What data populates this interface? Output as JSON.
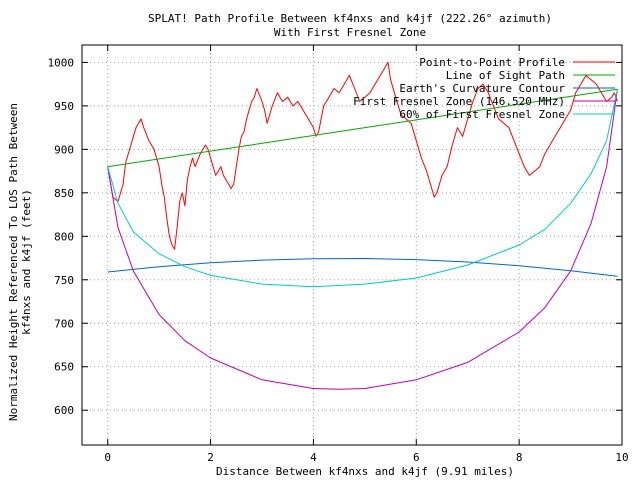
{
  "chart_data": {
    "type": "line",
    "title": "SPLAT! Path Profile Between kf4nxs and k4jf (222.26° azimuth)",
    "subtitle": "With First Fresnel Zone",
    "xlabel": "Distance Between kf4nxs and k4jf (9.91 miles)",
    "ylabel_line1": "Normalized Height Referenced To LOS Path Between",
    "ylabel_line2": "kf4nxs and k4jf (feet)",
    "xlim": [
      -0.5,
      10
    ],
    "ylim": [
      560,
      1020
    ],
    "xticks": [
      0,
      2,
      4,
      6,
      8,
      10
    ],
    "yticks": [
      600,
      650,
      700,
      750,
      800,
      850,
      900,
      950,
      1000
    ],
    "grid": true,
    "legend_position": "top-right",
    "series": [
      {
        "name": "Point-to-Point Profile",
        "color": "#ff0000",
        "x": [
          0,
          0.1,
          0.2,
          0.3,
          0.35,
          0.45,
          0.5,
          0.55,
          0.65,
          0.7,
          0.8,
          0.9,
          1.0,
          1.05,
          1.1,
          1.15,
          1.2,
          1.25,
          1.3,
          1.35,
          1.4,
          1.45,
          1.5,
          1.55,
          1.6,
          1.65,
          1.7,
          1.8,
          1.9,
          1.95,
          2.0,
          2.05,
          2.1,
          2.15,
          2.2,
          2.25,
          2.3,
          2.4,
          2.45,
          2.5,
          2.55,
          2.6,
          2.65,
          2.7,
          2.75,
          2.8,
          2.85,
          2.9,
          3.0,
          3.05,
          3.1,
          3.15,
          3.2,
          3.3,
          3.4,
          3.5,
          3.6,
          3.7,
          3.8,
          3.9,
          4.0,
          4.05,
          4.1,
          4.15,
          4.2,
          4.3,
          4.4,
          4.5,
          4.6,
          4.7,
          4.8,
          4.9,
          5.0,
          5.1,
          5.2,
          5.3,
          5.35,
          5.4,
          5.45,
          5.5,
          5.6,
          5.7,
          5.8,
          5.9,
          6.0,
          6.1,
          6.2,
          6.3,
          6.35,
          6.4,
          6.5,
          6.6,
          6.7,
          6.8,
          6.9,
          7.0,
          7.1,
          7.2,
          7.3,
          7.4,
          7.5,
          7.6,
          7.7,
          7.8,
          7.9,
          8.0,
          8.1,
          8.2,
          8.3,
          8.4,
          8.5,
          8.6,
          8.7,
          8.8,
          8.9,
          9.0,
          9.1,
          9.2,
          9.3,
          9.4,
          9.5,
          9.6,
          9.7,
          9.8,
          9.85,
          9.91
        ],
        "y": [
          880,
          845,
          840,
          860,
          885,
          905,
          915,
          925,
          935,
          925,
          910,
          900,
          880,
          860,
          845,
          820,
          800,
          790,
          785,
          810,
          840,
          850,
          835,
          865,
          880,
          890,
          880,
          895,
          905,
          900,
          890,
          880,
          870,
          875,
          880,
          870,
          865,
          855,
          860,
          880,
          900,
          915,
          920,
          935,
          945,
          955,
          960,
          970,
          955,
          945,
          930,
          940,
          950,
          965,
          955,
          960,
          950,
          955,
          945,
          935,
          925,
          915,
          920,
          935,
          950,
          960,
          970,
          965,
          975,
          985,
          970,
          955,
          960,
          965,
          975,
          985,
          990,
          995,
          1000,
          980,
          960,
          940,
          935,
          930,
          910,
          890,
          875,
          855,
          845,
          850,
          870,
          880,
          905,
          925,
          915,
          935,
          955,
          970,
          975,
          965,
          950,
          935,
          930,
          925,
          910,
          895,
          880,
          870,
          875,
          880,
          895,
          905,
          915,
          925,
          935,
          945,
          965,
          975,
          985,
          980,
          975,
          965,
          955,
          960,
          965,
          955
        ]
      },
      {
        "name": "Line of Sight Path",
        "color": "#00aa00",
        "x": [
          0,
          9.91
        ],
        "y": [
          880,
          969
        ]
      },
      {
        "name": "Earth's Curvature Contour",
        "color": "#0066cc",
        "x": [
          0,
          1,
          2,
          3,
          4,
          5,
          6,
          7,
          8,
          9,
          9.91
        ],
        "y": [
          759,
          765,
          769.6,
          772.6,
          774.3,
          774.5,
          773.2,
          770.4,
          766.2,
          760.5,
          754
        ]
      },
      {
        "name": "First Fresnel Zone (146.520 MHz)",
        "color": "#bb00bb",
        "x": [
          0,
          0.2,
          0.5,
          1,
          1.5,
          2,
          3,
          4,
          4.5,
          5,
          6,
          7,
          8,
          8.5,
          9,
          9.4,
          9.7,
          9.91
        ],
        "y": [
          880,
          810,
          760,
          710,
          680,
          660,
          635,
          625,
          624,
          625,
          635,
          655,
          690,
          718,
          760,
          815,
          880,
          969
        ]
      },
      {
        "name": "60% of First Fresnel Zone",
        "color": "#00cccc",
        "x": [
          0,
          0.2,
          0.5,
          1,
          1.5,
          2,
          3,
          4,
          5,
          6,
          7,
          8,
          8.5,
          9,
          9.4,
          9.7,
          9.91
        ],
        "y": [
          880,
          838,
          805,
          780,
          765,
          755,
          745,
          742,
          745,
          752,
          767,
          790,
          808,
          838,
          872,
          910,
          969
        ]
      }
    ]
  }
}
